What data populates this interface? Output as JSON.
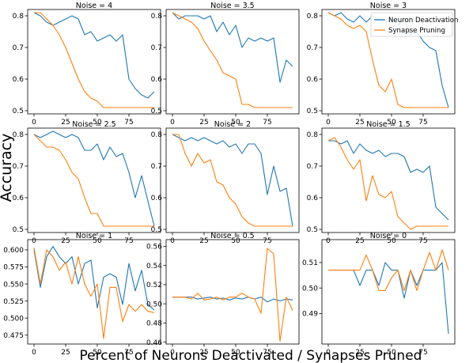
{
  "figure": {
    "ylabel": "Accuracy",
    "xlabel": "Percent of Neurons Deactivated / Synapses Pruned"
  },
  "legend": {
    "panel": 2,
    "entries": [
      {
        "name": "Neuron Deactivation",
        "color": "#1f77b4"
      },
      {
        "name": "Synapse Pruning",
        "color": "#ff7f0e"
      }
    ]
  },
  "colors": {
    "neuron": "#1f77b4",
    "synapse": "#ff7f0e"
  },
  "chart_data": [
    {
      "type": "line",
      "title": "Noise = 4",
      "xlim": [
        -5,
        100
      ],
      "ylim": [
        0.49,
        0.82
      ],
      "xticks": [
        0,
        25,
        50,
        75
      ],
      "yticks": [
        0.5,
        0.6,
        0.7,
        0.8
      ],
      "x": [
        0,
        5,
        10,
        15,
        20,
        25,
        30,
        35,
        40,
        45,
        50,
        55,
        60,
        65,
        70,
        75,
        80,
        85,
        90,
        95
      ],
      "series": [
        {
          "name": "Neuron Deactivation",
          "values": [
            0.81,
            0.8,
            0.78,
            0.77,
            0.78,
            0.79,
            0.8,
            0.79,
            0.74,
            0.75,
            0.72,
            0.73,
            0.74,
            0.72,
            0.74,
            0.6,
            0.57,
            0.55,
            0.54,
            0.56
          ]
        },
        {
          "name": "Synapse Pruning",
          "values": [
            0.81,
            0.81,
            0.79,
            0.77,
            0.74,
            0.7,
            0.65,
            0.6,
            0.56,
            0.54,
            0.53,
            0.51,
            0.51,
            0.51,
            0.51,
            0.51,
            0.51,
            0.51,
            0.51,
            0.51
          ]
        }
      ]
    },
    {
      "type": "line",
      "title": "Noise = 3.5",
      "xlim": [
        -5,
        100
      ],
      "ylim": [
        0.49,
        0.82
      ],
      "xticks": [
        0,
        25,
        50,
        75
      ],
      "yticks": [
        0.5,
        0.6,
        0.7,
        0.8
      ],
      "x": [
        0,
        5,
        10,
        15,
        20,
        25,
        30,
        35,
        40,
        45,
        50,
        55,
        60,
        65,
        70,
        75,
        80,
        85,
        90,
        95
      ],
      "series": [
        {
          "name": "Neuron Deactivation",
          "values": [
            0.81,
            0.79,
            0.8,
            0.8,
            0.8,
            0.79,
            0.8,
            0.75,
            0.78,
            0.74,
            0.77,
            0.7,
            0.73,
            0.72,
            0.73,
            0.72,
            0.73,
            0.59,
            0.66,
            0.64
          ]
        },
        {
          "name": "Synapse Pruning",
          "values": [
            0.81,
            0.8,
            0.79,
            0.78,
            0.76,
            0.72,
            0.69,
            0.66,
            0.62,
            0.61,
            0.6,
            0.52,
            0.52,
            0.51,
            0.51,
            0.51,
            0.51,
            0.51,
            0.51,
            0.51
          ]
        }
      ]
    },
    {
      "type": "line",
      "title": "Noise = 3",
      "xlim": [
        -5,
        100
      ],
      "ylim": [
        0.49,
        0.82
      ],
      "xticks": [
        0,
        25,
        50,
        75
      ],
      "yticks": [
        0.5,
        0.6,
        0.7,
        0.8
      ],
      "x": [
        0,
        5,
        10,
        15,
        20,
        25,
        30,
        35,
        40,
        45,
        50,
        55,
        60,
        65,
        70,
        75,
        80,
        85,
        90,
        95
      ],
      "series": [
        {
          "name": "Neuron Deactivation",
          "values": [
            0.81,
            0.8,
            0.81,
            0.79,
            0.78,
            0.8,
            0.78,
            0.8,
            0.79,
            0.78,
            0.79,
            0.77,
            0.79,
            0.74,
            0.75,
            0.72,
            0.7,
            0.69,
            0.58,
            0.51
          ]
        },
        {
          "name": "Synapse Pruning",
          "values": [
            0.81,
            0.8,
            0.79,
            0.77,
            0.76,
            0.77,
            0.75,
            0.66,
            0.58,
            0.56,
            0.6,
            0.52,
            0.51,
            0.51,
            0.51,
            0.51,
            0.51,
            0.51,
            0.51,
            0.51
          ]
        }
      ]
    },
    {
      "type": "line",
      "title": "Noise = 2.5",
      "xlim": [
        -5,
        100
      ],
      "ylim": [
        0.49,
        0.82
      ],
      "xticks": [
        0,
        25,
        50,
        75
      ],
      "yticks": [
        0.5,
        0.6,
        0.7,
        0.8
      ],
      "x": [
        0,
        5,
        10,
        15,
        20,
        25,
        30,
        35,
        40,
        45,
        50,
        55,
        60,
        65,
        70,
        75,
        80,
        85,
        90,
        95
      ],
      "series": [
        {
          "name": "Neuron Deactivation",
          "values": [
            0.8,
            0.79,
            0.8,
            0.81,
            0.8,
            0.79,
            0.8,
            0.79,
            0.75,
            0.75,
            0.77,
            0.72,
            0.76,
            0.73,
            0.74,
            0.68,
            0.6,
            0.67,
            0.59,
            0.51
          ]
        },
        {
          "name": "Synapse Pruning",
          "values": [
            0.8,
            0.78,
            0.76,
            0.76,
            0.75,
            0.72,
            0.68,
            0.66,
            0.6,
            0.55,
            0.55,
            0.51,
            0.51,
            0.51,
            0.51,
            0.51,
            0.51,
            0.51,
            0.51,
            0.51
          ]
        }
      ]
    },
    {
      "type": "line",
      "title": "Noise = 2",
      "xlim": [
        -5,
        100
      ],
      "ylim": [
        0.49,
        0.82
      ],
      "xticks": [
        0,
        25,
        50,
        75
      ],
      "yticks": [
        0.5,
        0.6,
        0.7,
        0.8
      ],
      "x": [
        0,
        5,
        10,
        15,
        20,
        25,
        30,
        35,
        40,
        45,
        50,
        55,
        60,
        65,
        70,
        75,
        80,
        85,
        90,
        95
      ],
      "series": [
        {
          "name": "Neuron Deactivation",
          "values": [
            0.8,
            0.79,
            0.78,
            0.79,
            0.78,
            0.79,
            0.78,
            0.77,
            0.78,
            0.76,
            0.77,
            0.74,
            0.77,
            0.77,
            0.74,
            0.61,
            0.7,
            0.62,
            0.63,
            0.51
          ]
        },
        {
          "name": "Synapse Pruning",
          "values": [
            0.8,
            0.8,
            0.74,
            0.7,
            0.74,
            0.71,
            0.72,
            0.65,
            0.64,
            0.6,
            0.58,
            0.54,
            0.52,
            0.51,
            0.51,
            0.51,
            0.51,
            0.51,
            0.51,
            0.51
          ]
        }
      ]
    },
    {
      "type": "line",
      "title": "Noise = 1.5",
      "xlim": [
        -5,
        100
      ],
      "ylim": [
        0.49,
        0.82
      ],
      "xticks": [
        0,
        25,
        50,
        75
      ],
      "yticks": [
        0.5,
        0.6,
        0.7,
        0.8
      ],
      "x": [
        0,
        5,
        10,
        15,
        20,
        25,
        30,
        35,
        40,
        45,
        50,
        55,
        60,
        65,
        70,
        75,
        80,
        85,
        90,
        95
      ],
      "series": [
        {
          "name": "Neuron Deactivation",
          "values": [
            0.78,
            0.78,
            0.77,
            0.78,
            0.74,
            0.77,
            0.75,
            0.74,
            0.75,
            0.73,
            0.74,
            0.74,
            0.73,
            0.68,
            0.69,
            0.68,
            0.7,
            0.57,
            0.55,
            0.53
          ]
        },
        {
          "name": "Synapse Pruning",
          "values": [
            0.78,
            0.79,
            0.76,
            0.72,
            0.69,
            0.72,
            0.59,
            0.67,
            0.61,
            0.6,
            0.62,
            0.54,
            0.52,
            0.5,
            0.51,
            0.51,
            0.51,
            0.51,
            0.51,
            0.51
          ]
        }
      ]
    },
    {
      "type": "line",
      "title": "Noise = 1",
      "xlim": [
        -5,
        100
      ],
      "ylim": [
        0.462,
        0.615
      ],
      "xticks": [
        0,
        25,
        50,
        75
      ],
      "yticks": [
        0.475,
        0.5,
        0.525,
        0.55,
        0.575,
        0.6
      ],
      "x": [
        0,
        5,
        10,
        15,
        20,
        25,
        30,
        35,
        40,
        45,
        50,
        55,
        60,
        65,
        70,
        75,
        80,
        85,
        90,
        95
      ],
      "series": [
        {
          "name": "Neuron Deactivation",
          "values": [
            0.6,
            0.545,
            0.59,
            0.605,
            0.59,
            0.58,
            0.59,
            0.55,
            0.58,
            0.585,
            0.515,
            0.56,
            0.565,
            0.56,
            0.52,
            0.58,
            0.54,
            0.57,
            0.52,
            0.512
          ]
        },
        {
          "name": "Synapse Pruning",
          "values": [
            0.603,
            0.55,
            0.6,
            0.59,
            0.57,
            0.582,
            0.55,
            0.59,
            0.55,
            0.532,
            0.55,
            0.47,
            0.545,
            0.545,
            0.495,
            0.52,
            0.51,
            0.52,
            0.51,
            0.508
          ]
        }
      ]
    },
    {
      "type": "line",
      "title": "Noise = 0.5",
      "xlim": [
        -5,
        100
      ],
      "ylim": [
        0.458,
        0.567
      ],
      "xticks": [
        0,
        25,
        50,
        75
      ],
      "yticks": [
        0.46,
        0.48,
        0.5,
        0.52,
        0.54,
        0.56
      ],
      "x": [
        0,
        5,
        10,
        15,
        20,
        25,
        30,
        35,
        40,
        45,
        50,
        55,
        60,
        65,
        70,
        75,
        80,
        85,
        90,
        95
      ],
      "series": [
        {
          "name": "Neuron Deactivation",
          "values": [
            0.507,
            0.507,
            0.507,
            0.507,
            0.505,
            0.506,
            0.507,
            0.505,
            0.506,
            0.504,
            0.506,
            0.505,
            0.507,
            0.505,
            0.507,
            0.502,
            0.505,
            0.503,
            0.505,
            0.504
          ]
        },
        {
          "name": "Synapse Pruning",
          "values": [
            0.507,
            0.507,
            0.507,
            0.505,
            0.511,
            0.504,
            0.505,
            0.507,
            0.504,
            0.507,
            0.507,
            0.511,
            0.507,
            0.505,
            0.49,
            0.558,
            0.552,
            0.461,
            0.507,
            0.493
          ]
        }
      ]
    },
    {
      "type": "line",
      "title": "Noise = 0",
      "xlim": [
        -5,
        100
      ],
      "ylim": [
        0.478,
        0.519
      ],
      "xticks": [
        0,
        25,
        50,
        75
      ],
      "yticks": [
        0.49,
        0.5,
        0.51
      ],
      "x": [
        0,
        5,
        10,
        15,
        20,
        25,
        30,
        35,
        40,
        45,
        50,
        55,
        60,
        65,
        70,
        75,
        80,
        85,
        90,
        95
      ],
      "series": [
        {
          "name": "Neuron Deactivation",
          "values": [
            0.507,
            0.507,
            0.507,
            0.507,
            0.507,
            0.501,
            0.507,
            0.507,
            0.501,
            0.51,
            0.507,
            0.507,
            0.496,
            0.507,
            0.501,
            0.507,
            0.507,
            0.507,
            0.51,
            0.482
          ]
        },
        {
          "name": "Synapse Pruning",
          "values": [
            0.507,
            0.507,
            0.507,
            0.507,
            0.507,
            0.507,
            0.513,
            0.507,
            0.499,
            0.499,
            0.504,
            0.507,
            0.499,
            0.507,
            0.499,
            0.507,
            0.514,
            0.507,
            0.515,
            0.507
          ]
        }
      ]
    }
  ]
}
